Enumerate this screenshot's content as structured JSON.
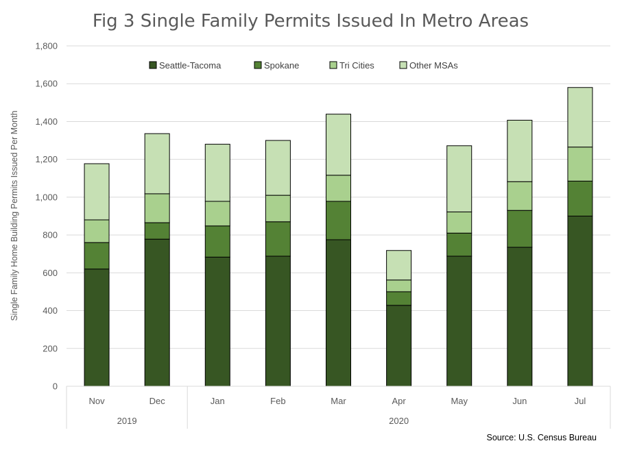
{
  "chart_data": {
    "type": "bar",
    "stacked": true,
    "title": "Fig 3 Single Family Permits Issued In Metro Areas",
    "xlabel": "",
    "ylabel": "Single Family Home Building Permits Issued Per Month",
    "ylim": [
      0,
      1800
    ],
    "yticks": [
      0,
      200,
      400,
      600,
      800,
      1000,
      1200,
      1400,
      1600,
      1800
    ],
    "ytick_labels": [
      "0",
      "200",
      "400",
      "600",
      "800",
      "1,000",
      "1,200",
      "1,400",
      "1,600",
      "1,800"
    ],
    "grid": true,
    "legend_position": "top",
    "categories": [
      "Nov",
      "Dec",
      "Jan",
      "Feb",
      "Mar",
      "Apr",
      "May",
      "Jun",
      "Jul"
    ],
    "category_groups": [
      {
        "label": "2019",
        "span": 2
      },
      {
        "label": "2020",
        "span": 7
      }
    ],
    "series": [
      {
        "name": "Seattle-Tacoma",
        "color": "#375623",
        "values": [
          620,
          778,
          683,
          688,
          775,
          428,
          688,
          735,
          900
        ]
      },
      {
        "name": "Spokane",
        "color": "#548235",
        "values": [
          140,
          87,
          165,
          182,
          203,
          72,
          122,
          195,
          185
        ]
      },
      {
        "name": "Tri Cities",
        "color": "#a9d08e",
        "values": [
          120,
          153,
          130,
          140,
          138,
          62,
          112,
          152,
          180
        ]
      },
      {
        "name": "Other MSAs",
        "color": "#c6e0b4",
        "values": [
          297,
          318,
          302,
          290,
          323,
          156,
          350,
          325,
          315
        ]
      }
    ],
    "source": "Source: U.S. Census Bureau"
  }
}
